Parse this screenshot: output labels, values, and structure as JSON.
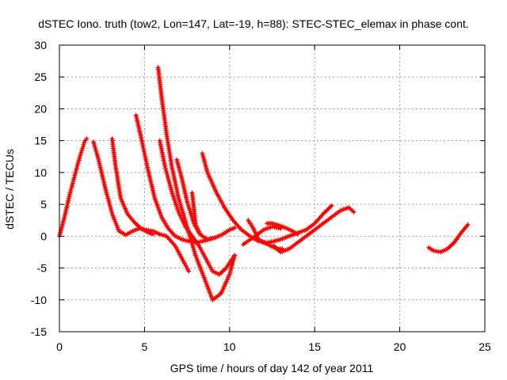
{
  "chart_data": {
    "type": "scatter",
    "title": "dSTEC Iono. truth (tow2, Lon=147, Lat=-19, h=88): STEC-STEC_elemax in phase cont.",
    "xlabel": "GPS time / hours of day 142 of year 2011",
    "ylabel": "dSTEC  / TECUs",
    "xlim": [
      0,
      25
    ],
    "ylim": [
      -15,
      30
    ],
    "xticks": [
      "0",
      "5",
      "10",
      "15",
      "20",
      "25"
    ],
    "yticks": [
      "-15",
      "-10",
      "-5",
      "0",
      "5",
      "10",
      "15",
      "20",
      "25",
      "30"
    ],
    "grid": true,
    "legend": "none",
    "series_color": "#ff0000",
    "series": [
      {
        "x": [
          0.0,
          0.3,
          0.6,
          0.9,
          1.2,
          1.5,
          1.6
        ],
        "y": [
          0.0,
          3.0,
          6.5,
          9.5,
          12.5,
          15.0,
          15.3
        ]
      },
      {
        "x": [
          2.0,
          2.3,
          2.7,
          3.1,
          3.5,
          3.9,
          4.3,
          4.7,
          5.1,
          5.5,
          5.9,
          6.3,
          6.8,
          7.3,
          7.6
        ],
        "y": [
          14.8,
          12.0,
          7.5,
          3.5,
          0.8,
          0.2,
          0.8,
          1.2,
          1.0,
          0.8,
          0.3,
          0.0,
          -1.5,
          -4.0,
          -5.5
        ]
      },
      {
        "x": [
          3.1,
          3.3,
          3.6,
          4.0,
          4.4,
          4.8,
          5.2,
          5.5
        ],
        "y": [
          15.3,
          11.0,
          6.0,
          3.5,
          2.2,
          1.2,
          0.6,
          0.3
        ]
      },
      {
        "x": [
          4.5,
          4.8,
          5.2,
          5.6,
          6.0,
          6.4,
          6.8,
          7.2,
          7.6,
          8.0,
          8.4,
          8.8,
          9.2,
          9.6,
          10.0,
          10.3
        ],
        "y": [
          19.0,
          15.5,
          10.5,
          6.0,
          3.0,
          1.2,
          0.0,
          -0.5,
          -0.8,
          -1.0,
          -0.8,
          -0.5,
          -0.2,
          0.3,
          1.0,
          1.3
        ]
      },
      {
        "x": [
          5.8,
          6.0,
          6.3,
          6.6,
          7.0,
          7.5,
          8.0,
          8.5,
          9.0,
          9.5,
          10.0,
          10.3
        ],
        "y": [
          26.5,
          22.0,
          16.0,
          11.0,
          6.0,
          1.5,
          -3.0,
          -6.5,
          -10.0,
          -9.0,
          -6.0,
          -3.0
        ]
      },
      {
        "x": [
          5.9,
          6.2,
          6.6,
          7.0,
          7.4,
          7.8,
          8.2,
          8.6,
          9.0,
          9.4,
          9.8,
          10.3
        ],
        "y": [
          15.0,
          11.0,
          7.0,
          3.8,
          1.5,
          0.0,
          -1.5,
          -3.5,
          -5.5,
          -6.0,
          -5.0,
          -3.0
        ]
      },
      {
        "x": [
          6.9,
          7.2,
          7.5,
          7.9,
          8.3,
          8.7,
          9.0
        ],
        "y": [
          12.0,
          9.0,
          5.5,
          2.0,
          0.2,
          -0.5,
          -0.3
        ]
      },
      {
        "x": [
          7.8,
          7.9,
          8.0,
          8.2
        ],
        "y": [
          6.8,
          4.5,
          2.0,
          0.5
        ]
      },
      {
        "x": [
          8.4,
          8.7,
          9.2,
          9.7,
          10.2,
          10.7,
          11.2,
          11.7,
          12.2,
          12.6,
          13.0,
          13.5,
          14.0,
          14.5,
          15.0,
          15.5,
          16.0
        ],
        "y": [
          13.0,
          10.0,
          7.0,
          4.5,
          2.5,
          1.0,
          0.0,
          -0.8,
          -1.0,
          -0.8,
          -0.5,
          0.0,
          0.5,
          1.0,
          2.0,
          3.5,
          4.8
        ]
      },
      {
        "x": [
          11.1,
          11.4,
          11.7,
          12.0,
          12.4,
          12.8,
          13.1
        ],
        "y": [
          2.5,
          1.2,
          -0.5,
          -1.0,
          -1.5,
          -2.0,
          -2.0
        ]
      },
      {
        "x": [
          10.8,
          11.5,
          12.0,
          12.5,
          13.0
        ],
        "y": [
          -1.3,
          0.0,
          1.0,
          1.5,
          1.2
        ]
      },
      {
        "x": [
          12.2,
          12.5,
          12.9,
          13.3,
          13.7,
          14.0
        ],
        "y": [
          2.0,
          2.0,
          1.7,
          1.3,
          0.8,
          0.3
        ]
      },
      {
        "x": [
          12.6,
          13.0,
          13.5,
          14.0,
          14.5,
          15.0,
          15.5,
          16.0,
          16.5,
          17.0,
          17.3
        ],
        "y": [
          -1.5,
          -2.5,
          -2.0,
          -1.0,
          0.0,
          1.0,
          2.0,
          3.0,
          4.0,
          4.5,
          3.8
        ]
      },
      {
        "x": [
          21.7,
          22.0,
          22.4,
          22.8,
          23.2,
          23.6,
          24.0
        ],
        "y": [
          -1.8,
          -2.3,
          -2.5,
          -2.0,
          -1.0,
          0.5,
          1.8
        ]
      }
    ]
  }
}
